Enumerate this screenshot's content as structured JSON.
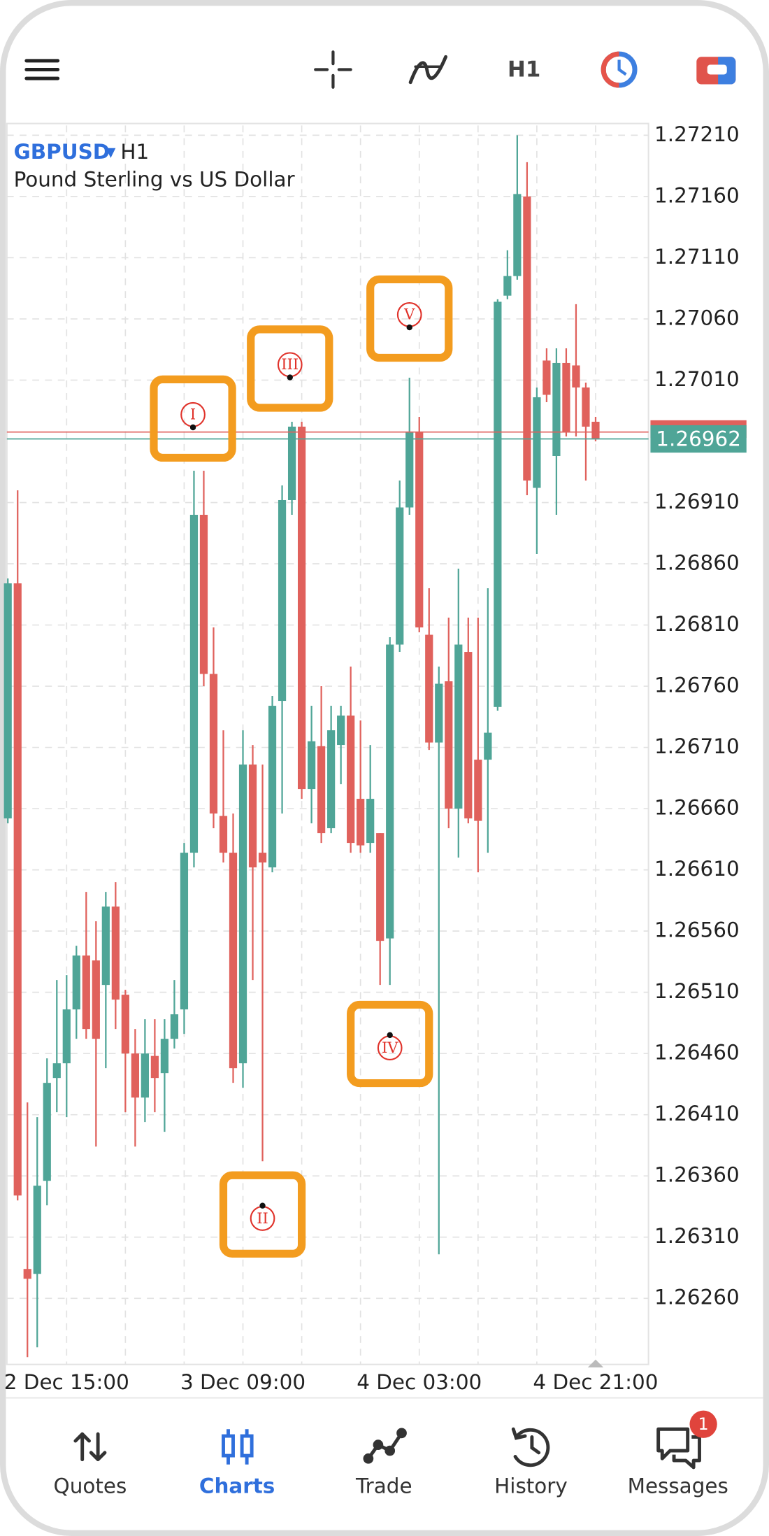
{
  "toolbar": {
    "timeframe": "H1"
  },
  "chart_data": {
    "type": "candlestick",
    "symbol": "GBPUSD",
    "timeframe": "H1",
    "description": "Pound Sterling vs US Dollar",
    "categories": [
      null,
      null,
      null,
      null,
      null,
      null,
      "2 Dec 15:00",
      null,
      null,
      null,
      null,
      null,
      null,
      null,
      null,
      null,
      null,
      null,
      null,
      null,
      null,
      null,
      null,
      null,
      "3 Dec 09:00",
      null,
      null,
      null,
      null,
      null,
      null,
      null,
      null,
      null,
      null,
      null,
      null,
      null,
      null,
      null,
      null,
      null,
      "4 Dec 03:00",
      null,
      null,
      null,
      null,
      null,
      null,
      null,
      null,
      null,
      null,
      null,
      null,
      null,
      null,
      null,
      null,
      null,
      "4 Dec 21:00"
    ],
    "open": [
      1.26652,
      1.26844,
      1.26284,
      1.2628,
      1.26356,
      1.2644,
      1.26452,
      1.26496,
      1.2654,
      1.26536,
      1.26516,
      1.2658,
      1.26508,
      1.2646,
      1.26424,
      1.26458,
      1.26444,
      1.26472,
      1.26496,
      1.26624,
      1.269,
      1.2677,
      1.26654,
      1.26624,
      1.26452,
      1.26696,
      1.26624,
      1.26612,
      1.26748,
      1.26912,
      1.26972,
      1.26676,
      1.26711,
      1.26644,
      1.26712,
      1.26736,
      1.26668,
      1.26632,
      1.2664,
      1.26554,
      1.26794,
      1.26906,
      1.26968,
      1.26802,
      1.26714,
      1.26764,
      1.2666,
      1.26788,
      1.267,
      1.267,
      1.26743,
      1.27079,
      1.27095,
      1.2716,
      1.26922,
      1.27026,
      1.26948,
      1.27024,
      1.27022,
      1.27004,
      1.26976
    ],
    "high": [
      1.26848,
      1.2692,
      1.2642,
      1.26408,
      1.26456,
      1.2652,
      1.26524,
      1.26548,
      1.26592,
      1.26568,
      1.26592,
      1.266,
      1.26512,
      1.2648,
      1.26488,
      1.26488,
      1.26488,
      1.2652,
      1.26632,
      1.26936,
      1.26936,
      1.26808,
      1.26724,
      1.26656,
      1.26724,
      1.26712,
      1.26696,
      1.26752,
      1.26924,
      1.26976,
      1.26976,
      1.26744,
      1.2676,
      1.26744,
      1.26744,
      1.26776,
      1.26732,
      1.26712,
      1.2664,
      1.268,
      1.26928,
      1.27012,
      1.2698,
      1.2684,
      1.26776,
      1.26816,
      1.26856,
      1.26816,
      1.26816,
      1.2684,
      1.27076,
      1.27116,
      1.2721,
      1.27188,
      1.27004,
      1.27036,
      1.27036,
      1.27036,
      1.27072,
      1.27008,
      1.2698
    ],
    "low": [
      1.26648,
      1.2634,
      1.26212,
      1.2622,
      1.26336,
      1.26412,
      1.26408,
      1.26472,
      1.26472,
      1.26384,
      1.26448,
      1.2648,
      1.26412,
      1.26384,
      1.26404,
      1.26412,
      1.26396,
      1.26464,
      1.26476,
      1.26612,
      1.2676,
      1.26644,
      1.26616,
      1.26436,
      1.26432,
      1.2652,
      1.26372,
      1.26608,
      1.26656,
      1.269,
      1.26668,
      1.26648,
      1.26632,
      1.2664,
      1.2668,
      1.26624,
      1.26624,
      1.26624,
      1.26516,
      1.26516,
      1.26788,
      1.269,
      1.26804,
      1.26708,
      1.26296,
      1.26644,
      1.2662,
      1.26648,
      1.26608,
      1.26624,
      1.2674,
      1.27076,
      1.27092,
      1.26916,
      1.26868,
      1.26992,
      1.269,
      1.26964,
      1.26964,
      1.26928,
      1.2696
    ],
    "close": [
      1.26844,
      1.26344,
      1.26276,
      1.26352,
      1.26436,
      1.26452,
      1.26496,
      1.2654,
      1.2648,
      1.26472,
      1.2658,
      1.26504,
      1.2646,
      1.26424,
      1.2646,
      1.2644,
      1.26472,
      1.26492,
      1.26624,
      1.269,
      1.2677,
      1.26656,
      1.26624,
      1.26448,
      1.26696,
      1.26612,
      1.26616,
      1.26744,
      1.26912,
      1.26972,
      1.26676,
      1.26715,
      1.2664,
      1.26724,
      1.26736,
      1.26632,
      1.2663,
      1.26668,
      1.26552,
      1.26794,
      1.26906,
      1.26968,
      1.26808,
      1.26714,
      1.26762,
      1.2666,
      1.26794,
      1.26652,
      1.2665,
      1.26722,
      1.27074,
      1.27095,
      1.27162,
      1.26928,
      1.26996,
      1.26998,
      1.27024,
      1.26968,
      1.27004,
      1.26972,
      1.26962
    ],
    "up_color": "#4fa597",
    "down_color": "#e0615c",
    "ylim": [
      1.26206,
      1.27218
    ],
    "yticks": [
      {
        "value": 1.2721,
        "label": "1.27210"
      },
      {
        "value": 1.2716,
        "label": "1.27160"
      },
      {
        "value": 1.2711,
        "label": "1.27110"
      },
      {
        "value": 1.2706,
        "label": "1.27060"
      },
      {
        "value": 1.2701,
        "label": "1.27010"
      },
      {
        "value": 1.2691,
        "label": "1.26910"
      },
      {
        "value": 1.2686,
        "label": "1.26860"
      },
      {
        "value": 1.2681,
        "label": "1.26810"
      },
      {
        "value": 1.2676,
        "label": "1.26760"
      },
      {
        "value": 1.2671,
        "label": "1.26710"
      },
      {
        "value": 1.2666,
        "label": "1.26660"
      },
      {
        "value": 1.2661,
        "label": "1.26610"
      },
      {
        "value": 1.2656,
        "label": "1.26560"
      },
      {
        "value": 1.2651,
        "label": "1.26510"
      },
      {
        "value": 1.2646,
        "label": "1.26460"
      },
      {
        "value": 1.2641,
        "label": "1.26410"
      },
      {
        "value": 1.2636,
        "label": "1.26360"
      },
      {
        "value": 1.2631,
        "label": "1.26310"
      },
      {
        "value": 1.2626,
        "label": "1.26260"
      }
    ],
    "grid": true,
    "last_price": 1.26962,
    "annotations": [
      "I",
      "II",
      "III",
      "IV",
      "V"
    ]
  },
  "nav": {
    "items": [
      "Quotes",
      "Charts",
      "Trade",
      "History",
      "Messages"
    ],
    "badge": 1
  }
}
